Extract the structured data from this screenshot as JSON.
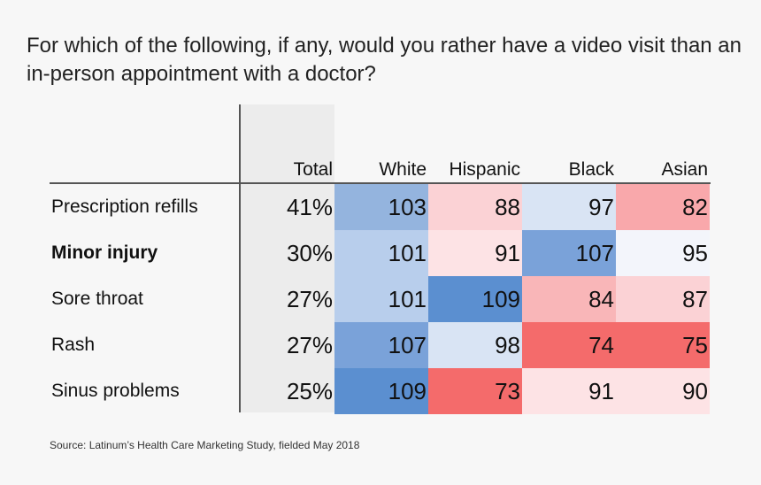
{
  "title": "For which of the following, if any, would you rather have a video visit than an in-person appointment with a doctor?",
  "source": "Source: Latinum’s Health Care Marketing Study, fielded May 2018",
  "colors": {
    "blue_strong": "#5b8fd0",
    "blue_mid": "#94b4de",
    "blue_light": "#b8ceec",
    "blue_pale": "#d9e4f4",
    "red_strong": "#f46b6b",
    "red_mid": "#f9a8ab",
    "red_light": "#fbd2d5",
    "red_pale": "#fde3e5"
  },
  "chart_data": {
    "type": "table",
    "columns": [
      "Total",
      "White",
      "Hispanic",
      "Black",
      "Asian"
    ],
    "rows": [
      {
        "label": "Prescription refills",
        "bold": false,
        "total": "41%",
        "values": [
          103,
          88,
          97,
          82
        ]
      },
      {
        "label": "Minor injury",
        "bold": true,
        "total": "30%",
        "values": [
          101,
          91,
          107,
          95
        ]
      },
      {
        "label": "Sore throat",
        "bold": false,
        "total": "27%",
        "values": [
          101,
          109,
          84,
          87
        ]
      },
      {
        "label": "Rash",
        "bold": false,
        "total": "27%",
        "values": [
          107,
          98,
          74,
          75
        ]
      },
      {
        "label": "Sinus problems",
        "bold": false,
        "total": "25%",
        "values": [
          109,
          73,
          91,
          90
        ]
      }
    ]
  }
}
